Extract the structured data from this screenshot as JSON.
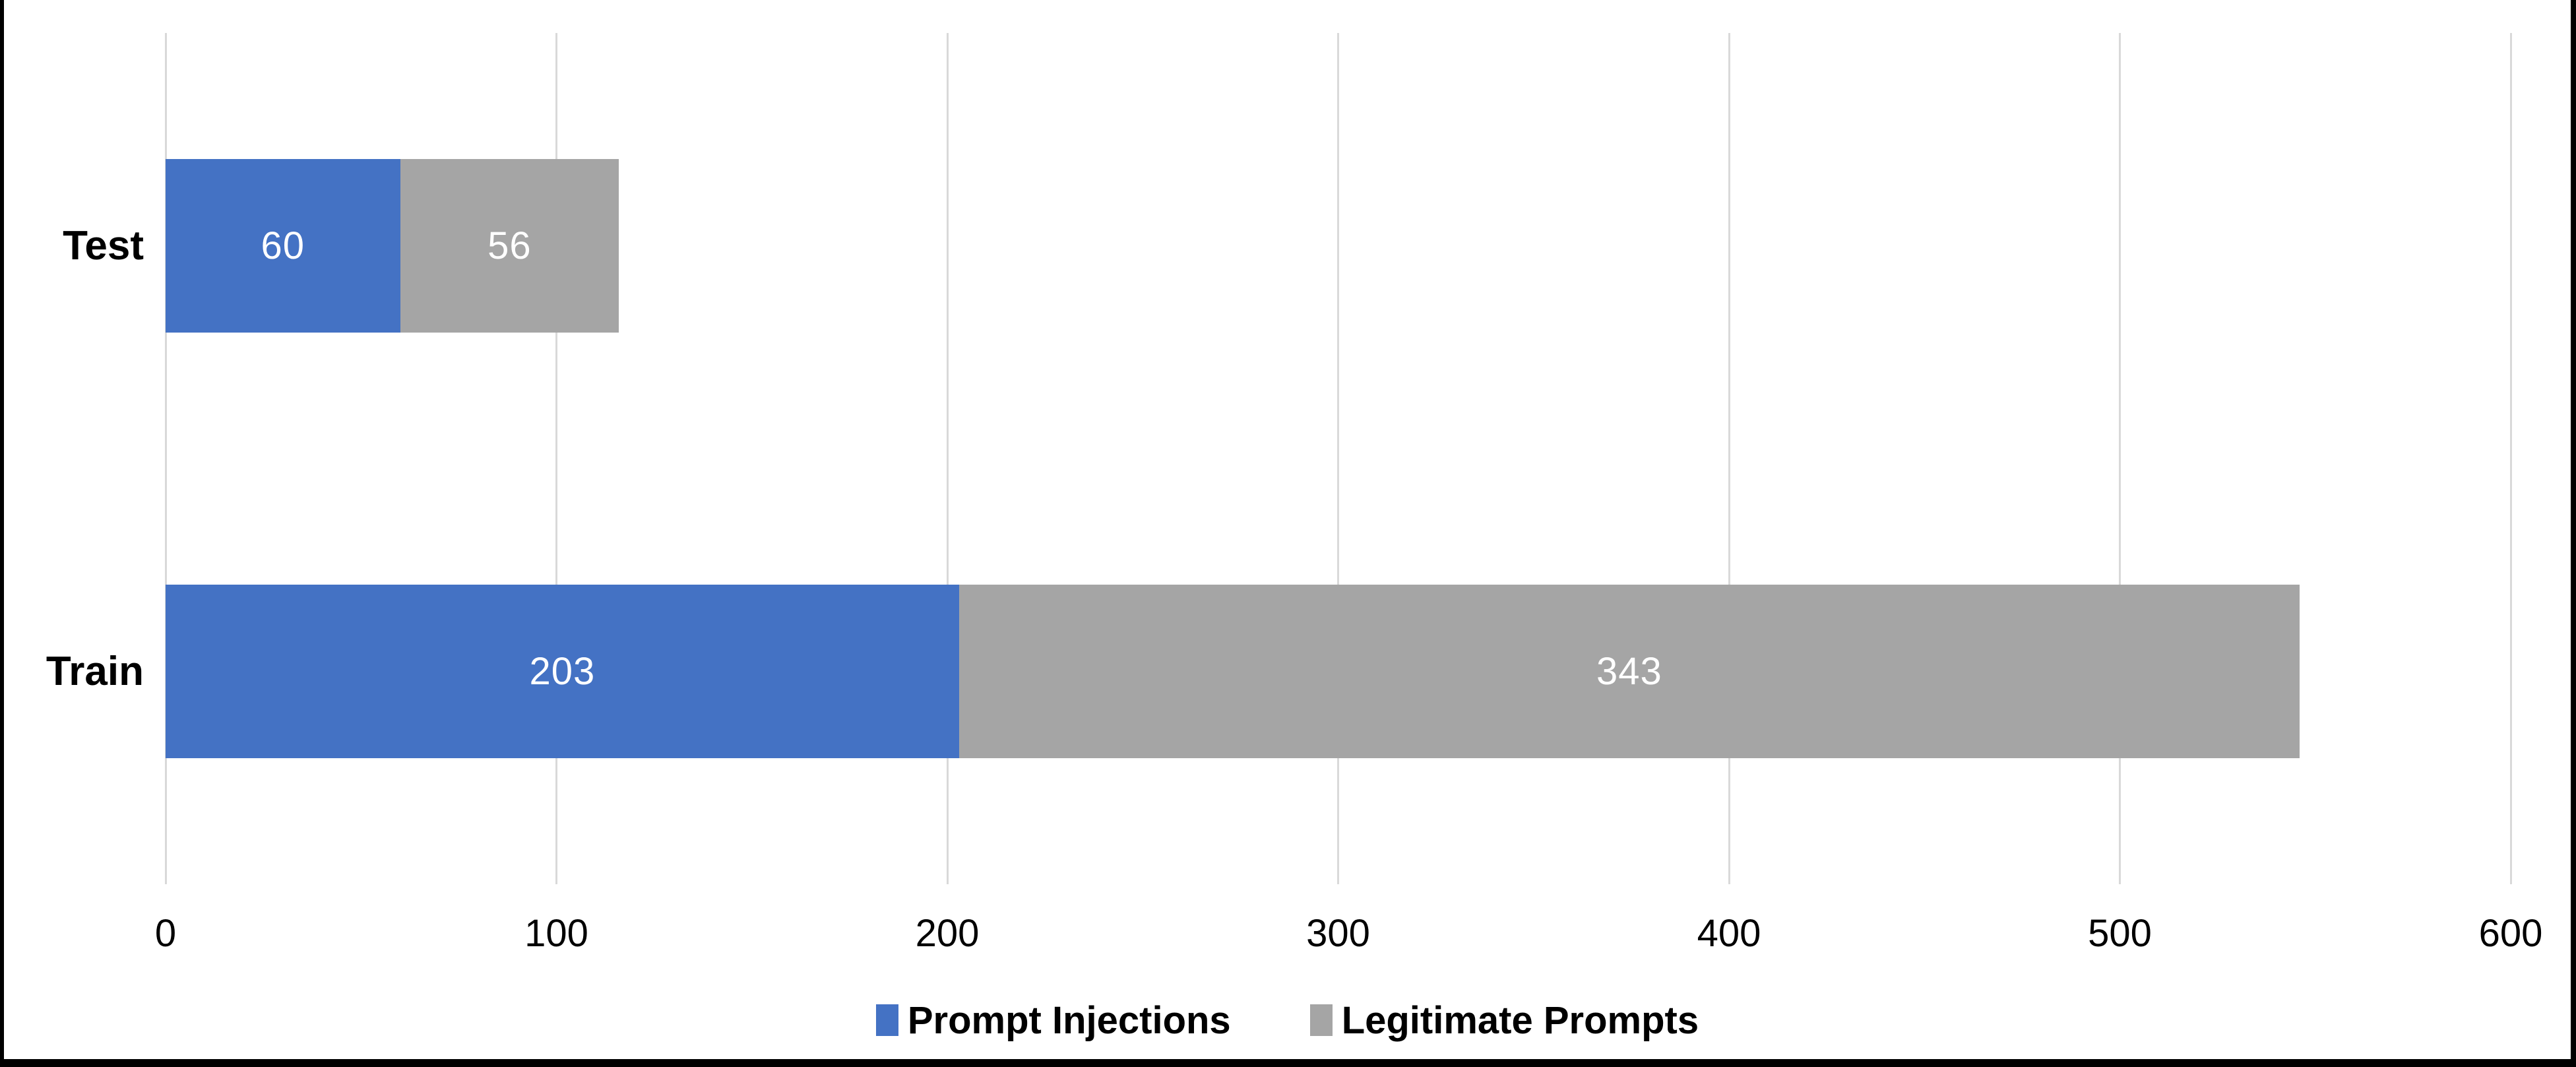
{
  "chart_data": {
    "type": "bar",
    "orientation": "horizontal",
    "stacked": true,
    "categories": [
      "Test",
      "Train"
    ],
    "series": [
      {
        "name": "Prompt Injections",
        "color": "#4472C4",
        "values": [
          60,
          203
        ]
      },
      {
        "name": "Legitimate Prompts",
        "color": "#A5A5A5",
        "values": [
          56,
          343
        ]
      }
    ],
    "x_ticks": [
      0,
      100,
      200,
      300,
      400,
      500,
      600
    ],
    "xlim": [
      0,
      600
    ],
    "grid": "vertical",
    "legend_position": "bottom",
    "value_labels": "inside-center-white"
  },
  "colors": {
    "gridline": "#D9D9D9",
    "frame_border": "#000000",
    "background": "#FFFFFF",
    "value_label_text": "#FFFFFF",
    "axis_text": "#000000"
  }
}
